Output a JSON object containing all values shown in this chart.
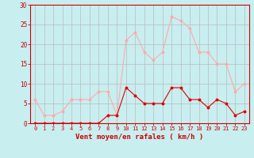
{
  "hours": [
    0,
    1,
    2,
    3,
    4,
    5,
    6,
    7,
    8,
    9,
    10,
    11,
    12,
    13,
    14,
    15,
    16,
    17,
    18,
    19,
    20,
    21,
    22,
    23
  ],
  "wind_avg": [
    0,
    0,
    0,
    0,
    0,
    0,
    0,
    0,
    2,
    2,
    9,
    7,
    5,
    5,
    5,
    9,
    9,
    6,
    6,
    4,
    6,
    5,
    2,
    3
  ],
  "wind_gust": [
    6,
    2,
    2,
    3,
    6,
    6,
    6,
    8,
    8,
    2,
    21,
    23,
    18,
    16,
    18,
    27,
    26,
    24,
    18,
    18,
    15,
    15,
    8,
    10
  ],
  "avg_color": "#dd0000",
  "gust_color": "#ffaaaa",
  "bg_color": "#c8eef0",
  "grid_color": "#bbbbbb",
  "xlabel": "Vent moyen/en rafales ( km/h )",
  "xlabel_color": "#cc0000",
  "ylim": [
    0,
    30
  ],
  "yticks": [
    0,
    5,
    10,
    15,
    20,
    25,
    30
  ],
  "xticks": [
    0,
    1,
    2,
    3,
    4,
    5,
    6,
    7,
    8,
    9,
    10,
    11,
    12,
    13,
    14,
    15,
    16,
    17,
    18,
    19,
    20,
    21,
    22,
    23
  ],
  "tick_color": "#cc0000",
  "spine_color": "#cc0000",
  "label_fontsize": 6.5,
  "tick_fontsize": 5.0
}
